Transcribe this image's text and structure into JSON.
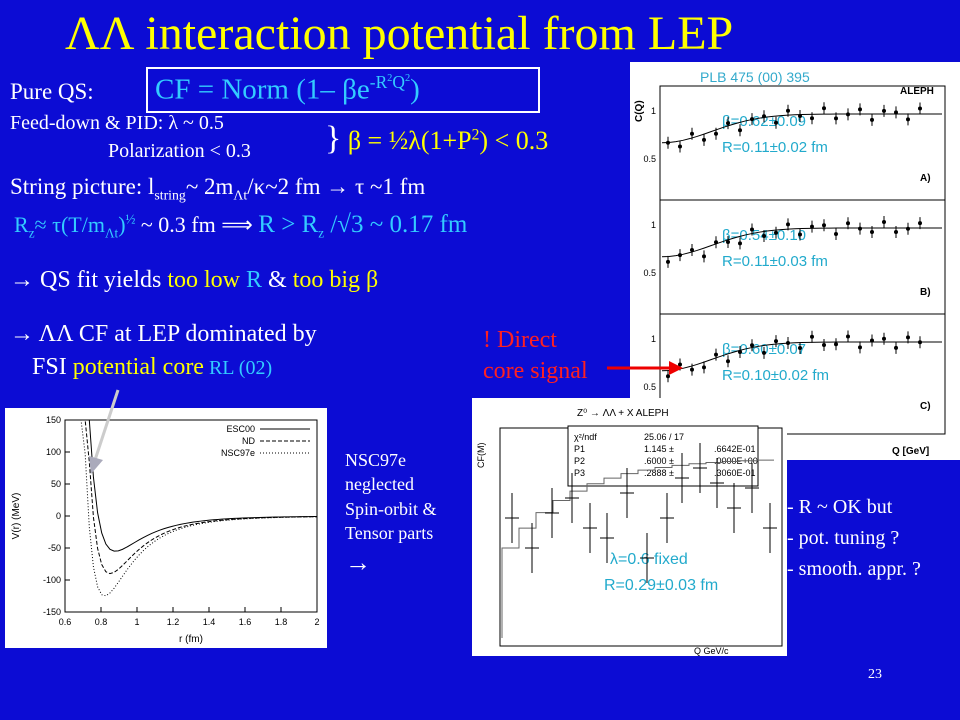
{
  "title": "ΛΛ interaction potential from LEP",
  "pure_qs": "Pure QS:",
  "formula": [
    "CF = Norm (1– β",
    "e",
    "-R",
    "2",
    "Q",
    "2",
    ")"
  ],
  "feed_down": "Feed-down & PID: λ ~ 0.5",
  "polarization": "Polarization < 0.3",
  "beta_relation": [
    "}",
    "β  = ½λ(1+P",
    "2",
    ") < 0.3"
  ],
  "string_picture": [
    "String picture: l",
    "string",
    "~ 2m",
    "Λt",
    "/κ~2 fm → τ ~1 fm"
  ],
  "rz_line": [
    "R",
    "z",
    "≈ τ(T/m",
    "Λt",
    ")",
    "½",
    " ~ 0.3 fm ⟹ ",
    "R > R",
    "z",
    " /√3 ~ 0.17 fm"
  ],
  "bullet1": [
    "→ QS fit yields ",
    "too low ",
    "R",
    " & ",
    "too big β"
  ],
  "bullet2": "→ ΛΛ  CF at LEP dominated by",
  "bullet2b": [
    "FSI ",
    "potential core",
    " RL (02)"
  ],
  "direct": [
    "! Direct",
    "core signal"
  ],
  "nsc_note": [
    "NSC97e",
    "neglected",
    "Spin-orbit &",
    "Tensor parts",
    "→"
  ],
  "remarks": [
    "- R ~ OK but",
    "- pot. tuning ?",
    "- smooth. appr. ?"
  ],
  "page_number": "23",
  "aleph_plot": {
    "ref": "PLB 475 (00) 395",
    "brand": "ALEPH",
    "y_label": "C(Q)",
    "x_label": "Q [GeV]",
    "panels": [
      {
        "beta": "β=0.62±0.09",
        "R": "R=0.11±0.02 fm",
        "tag": "A)"
      },
      {
        "beta": "β=0.54±0.10",
        "R": "R=0.11±0.03 fm",
        "tag": "B)"
      },
      {
        "beta": "β=0.60±0.07",
        "R": "R=0.10±0.02 fm",
        "tag": "C)"
      }
    ],
    "yticks": [
      "1",
      "0.5"
    ]
  },
  "potential_plot": {
    "y_label": "V(r) (MeV)",
    "x_label": "r (fm)",
    "legend": [
      "ESC00",
      "ND",
      "NSC97e"
    ],
    "ylim": [
      -150,
      150
    ],
    "yticks": [
      150,
      100,
      50,
      0,
      -50,
      -100,
      -150
    ],
    "xlim": [
      0.6,
      2
    ],
    "xticks": [
      0.6,
      0.8,
      1,
      1.2,
      1.4,
      1.6,
      1.8,
      2
    ]
  },
  "cf_plot": {
    "title": "Z⁰ → ΛΛ + X   ALEPH",
    "fit_box": [
      [
        "χ²/ndf",
        "25.06 / 17"
      ],
      [
        "P1",
        "1.145 ±",
        ".6642E-01"
      ],
      [
        "P2",
        ".6000 ±",
        ".0000E+00"
      ],
      [
        "P3",
        ".2888 ±",
        ".3060E-01"
      ]
    ],
    "y_label": "CF(M)",
    "x_label": "Q   GeV/c",
    "lambda": "λ=0.6 fixed",
    "R": "R=0.29±0.03 fm"
  }
}
